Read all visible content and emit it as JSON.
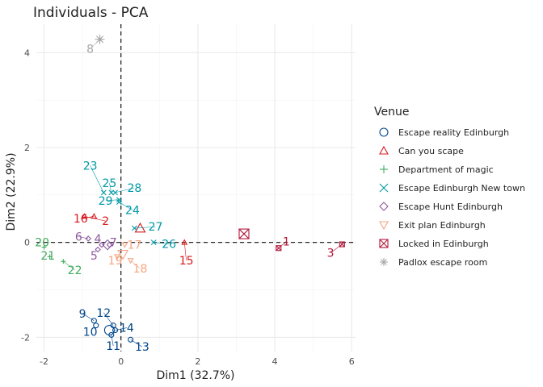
{
  "chart_data": {
    "type": "scatter",
    "title": "Individuals - PCA",
    "xlabel": "Dim1 (32.7%)",
    "ylabel": "Dim2 (22.9%)",
    "xlim": [
      -2.2,
      6.1
    ],
    "ylim": [
      -2.3,
      4.6
    ],
    "xticks": [
      -2,
      0,
      2,
      4,
      6
    ],
    "xtick_labels": [
      "-2",
      "0",
      "2",
      "4",
      "6"
    ],
    "yticks": [
      -2,
      0,
      2,
      4
    ],
    "ytick_labels": [
      "-2",
      "0",
      "2",
      "4"
    ],
    "grid": true,
    "reference_lines": {
      "x": 0,
      "y": 0,
      "style": "dashed"
    },
    "legend": {
      "title": "Venue",
      "placement": "right",
      "entries": [
        {
          "label": " Escape reality Edinburgh",
          "color": "#00468B",
          "marker": "circle"
        },
        {
          "label": "Can you scape",
          "color": "#D7191C",
          "marker": "triangle"
        },
        {
          "label": "Department of magic",
          "color": "#41AB5D",
          "marker": "plus"
        },
        {
          "label": "Escape Edinburgh New town",
          "color": "#0098A6",
          "marker": "cross"
        },
        {
          "label": "Escape Hunt Edinburgh",
          "color": "#8E5A9E",
          "marker": "diamond"
        },
        {
          "label": "Exit plan Edinburgh",
          "color": "#F4A582",
          "marker": "triangle-down"
        },
        {
          "label": "Locked in Edinburgh",
          "color": "#B2183A",
          "marker": "square-x"
        },
        {
          "label": "Padlox escape room",
          "color": "#A8A8A8",
          "marker": "asterisk"
        }
      ]
    },
    "centroids": [
      {
        "group": 0,
        "x": -0.3,
        "y": -1.85
      },
      {
        "group": 1,
        "x": 0.5,
        "y": 0.3
      },
      {
        "group": 4,
        "x": -0.35,
        "y": -0.05
      },
      {
        "group": 5,
        "x": 0.05,
        "y": -0.25
      },
      {
        "group": 6,
        "x": 3.2,
        "y": 0.18
      },
      {
        "group": 7,
        "x": -0.55,
        "y": 4.28
      }
    ],
    "points": [
      {
        "label": "1",
        "group": 6,
        "x": 4.1,
        "y": -0.12,
        "lx": 4.3,
        "ly": 0.02
      },
      {
        "label": "2",
        "group": 1,
        "x": -0.95,
        "y": 0.55,
        "lx": -0.4,
        "ly": 0.45
      },
      {
        "label": "3",
        "group": 6,
        "x": 5.75,
        "y": -0.04,
        "lx": 5.45,
        "ly": -0.22
      },
      {
        "label": "4",
        "group": 4,
        "x": -0.5,
        "y": -0.05,
        "lx": -0.6,
        "ly": 0.08
      },
      {
        "label": "5",
        "group": 4,
        "x": -0.6,
        "y": -0.15,
        "lx": -0.7,
        "ly": -0.28
      },
      {
        "label": "6",
        "group": 4,
        "x": -0.85,
        "y": 0.08,
        "lx": -1.1,
        "ly": 0.12
      },
      {
        "label": "7",
        "group": 4,
        "x": -0.3,
        "y": -0.05,
        "lx": -0.2,
        "ly": 0.0
      },
      {
        "label": "8",
        "group": 7,
        "x": -0.55,
        "y": 4.28,
        "lx": -0.8,
        "ly": 4.08
      },
      {
        "label": "9",
        "group": 0,
        "x": -0.7,
        "y": -1.65,
        "lx": -1.0,
        "ly": -1.5
      },
      {
        "label": "10",
        "group": 0,
        "x": -0.65,
        "y": -1.75,
        "lx": -0.8,
        "ly": -1.88
      },
      {
        "label": "11",
        "group": 0,
        "x": -0.25,
        "y": -1.95,
        "lx": -0.2,
        "ly": -2.18
      },
      {
        "label": "12",
        "group": 0,
        "x": -0.2,
        "y": -1.75,
        "lx": -0.45,
        "ly": -1.48
      },
      {
        "label": "13",
        "group": 0,
        "x": 0.25,
        "y": -2.05,
        "lx": 0.55,
        "ly": -2.2
      },
      {
        "label": "14",
        "group": 0,
        "x": -0.15,
        "y": -1.85,
        "lx": 0.15,
        "ly": -1.8
      },
      {
        "label": "15",
        "group": 1,
        "x": 1.65,
        "y": 0.0,
        "lx": 1.7,
        "ly": -0.38
      },
      {
        "label": "16",
        "group": 1,
        "x": -0.7,
        "y": 0.55,
        "lx": -1.05,
        "ly": 0.5
      },
      {
        "label": "17",
        "group": 5,
        "x": 0.1,
        "y": -0.05,
        "lx": 0.35,
        "ly": -0.05
      },
      {
        "label": "18",
        "group": 5,
        "x": 0.25,
        "y": -0.38,
        "lx": 0.5,
        "ly": -0.55
      },
      {
        "label": "19",
        "group": 5,
        "x": -0.1,
        "y": -0.3,
        "lx": -0.15,
        "ly": -0.38
      },
      {
        "label": "20",
        "group": 2,
        "x": -2.0,
        "y": -0.1,
        "lx": -2.05,
        "ly": 0.0
      },
      {
        "label": "21",
        "group": 2,
        "x": -1.85,
        "y": -0.3,
        "lx": -1.9,
        "ly": -0.28
      },
      {
        "label": "22",
        "group": 2,
        "x": -1.5,
        "y": -0.4,
        "lx": -1.2,
        "ly": -0.58
      },
      {
        "label": "23",
        "group": 3,
        "x": -0.45,
        "y": 1.05,
        "lx": -0.8,
        "ly": 1.62
      },
      {
        "label": "24",
        "group": 3,
        "x": -0.05,
        "y": 0.85,
        "lx": 0.3,
        "ly": 0.68
      },
      {
        "label": "25",
        "group": 3,
        "x": -0.25,
        "y": 1.05,
        "lx": -0.3,
        "ly": 1.25
      },
      {
        "label": "26",
        "group": 3,
        "x": 0.85,
        "y": 0.0,
        "lx": 1.25,
        "ly": -0.03
      },
      {
        "label": "27",
        "group": 3,
        "x": 0.35,
        "y": 0.3,
        "lx": 0.9,
        "ly": 0.33
      },
      {
        "label": "28",
        "group": 3,
        "x": -0.15,
        "y": 1.05,
        "lx": 0.35,
        "ly": 1.15
      },
      {
        "label": "29",
        "group": 3,
        "x": -0.05,
        "y": 0.9,
        "lx": -0.4,
        "ly": 0.88
      }
    ]
  }
}
